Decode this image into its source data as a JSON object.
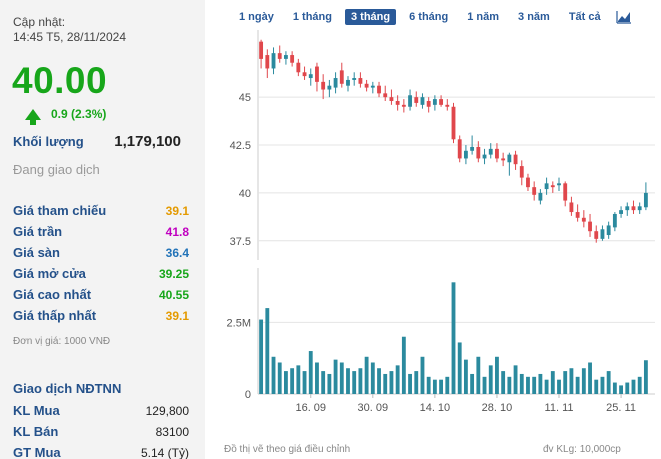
{
  "quote": {
    "updated_label": "Cập nhật:",
    "updated_time": "14:45 T5, 28/11/2024",
    "price": "40.00",
    "change": "0.9 (2.3%)",
    "volume_label": "Khối lượng",
    "volume_value": "1,179,100",
    "status": "Đang giao dịch"
  },
  "stats": [
    {
      "label": "Giá tham chiếu",
      "value": "39.1",
      "color": "#e49a00"
    },
    {
      "label": "Giá trần",
      "value": "41.8",
      "color": "#c000c0"
    },
    {
      "label": "Giá sàn",
      "value": "36.4",
      "color": "#2273b8"
    },
    {
      "label": "Giá mở cửa",
      "value": "39.25",
      "color": "#17a61a"
    },
    {
      "label": "Giá cao nhất",
      "value": "40.55",
      "color": "#17a61a"
    },
    {
      "label": "Giá thấp nhất",
      "value": "39.1",
      "color": "#e49a00"
    }
  ],
  "unit_note": "Đơn vị giá: 1000 VNĐ",
  "foreign": {
    "title": "Giao dịch NĐTNN",
    "rows": [
      {
        "label": "KL Mua",
        "value": "129,800"
      },
      {
        "label": "KL Bán",
        "value": "83100"
      },
      {
        "label": "GT Mua",
        "value": "5.14 (Tỷ)"
      }
    ]
  },
  "tabs": [
    {
      "label": "1 ngày",
      "active": false
    },
    {
      "label": "1 tháng",
      "active": false
    },
    {
      "label": "3 tháng",
      "active": true
    },
    {
      "label": "6 tháng",
      "active": false
    },
    {
      "label": "1 năm",
      "active": false
    },
    {
      "label": "3 năm",
      "active": false
    },
    {
      "label": "Tất cả",
      "active": false
    }
  ],
  "chart_icon": "line-chart-icon",
  "footer": {
    "left": "Đồ thị vẽ theo giá điều chỉnh",
    "right": "đv KLg: 10,000cp"
  },
  "colors": {
    "up": "#2b8a9e",
    "down": "#e0474c",
    "vol": "#2b8a9e",
    "grid": "#e4e4e4"
  },
  "chart_data": {
    "type": "candlestick",
    "price_ticks": [
      "45",
      "42.5",
      "40",
      "37.5"
    ],
    "price_tick_values": [
      45,
      42.5,
      40,
      37.5
    ],
    "price_range": [
      36.6,
      48.3
    ],
    "volume_ticks": [
      "2.5M",
      "0"
    ],
    "volume_tick_values": [
      2500000,
      0
    ],
    "volume_range": [
      0,
      4400000
    ],
    "date_labels": [
      {
        "label": "16. 09",
        "index": 8
      },
      {
        "label": "30. 09",
        "index": 18
      },
      {
        "label": "14. 10",
        "index": 28
      },
      {
        "label": "28. 10",
        "index": 38
      },
      {
        "label": "11. 11",
        "index": 48
      },
      {
        "label": "25. 11",
        "index": 58
      }
    ],
    "candles": [
      {
        "o": 47.9,
        "h": 48.0,
        "l": 46.5,
        "c": 47.0,
        "v": 2600000
      },
      {
        "o": 47.2,
        "h": 47.5,
        "l": 46.0,
        "c": 46.5,
        "v": 3000000
      },
      {
        "o": 46.5,
        "h": 47.6,
        "l": 46.2,
        "c": 47.3,
        "v": 1300000
      },
      {
        "o": 47.3,
        "h": 47.7,
        "l": 46.8,
        "c": 47.0,
        "v": 1100000
      },
      {
        "o": 47.0,
        "h": 47.4,
        "l": 46.7,
        "c": 47.2,
        "v": 800000
      },
      {
        "o": 47.2,
        "h": 47.4,
        "l": 46.6,
        "c": 46.8,
        "v": 900000
      },
      {
        "o": 46.8,
        "h": 47.0,
        "l": 46.1,
        "c": 46.3,
        "v": 1000000
      },
      {
        "o": 46.3,
        "h": 46.6,
        "l": 45.9,
        "c": 46.1,
        "v": 800000
      },
      {
        "o": 46.0,
        "h": 46.5,
        "l": 45.6,
        "c": 46.2,
        "v": 1500000
      },
      {
        "o": 46.6,
        "h": 46.8,
        "l": 45.3,
        "c": 45.8,
        "v": 1100000
      },
      {
        "o": 45.8,
        "h": 46.2,
        "l": 44.9,
        "c": 45.4,
        "v": 800000
      },
      {
        "o": 45.4,
        "h": 45.9,
        "l": 45.0,
        "c": 45.6,
        "v": 700000
      },
      {
        "o": 45.5,
        "h": 46.3,
        "l": 45.2,
        "c": 46.0,
        "v": 1200000
      },
      {
        "o": 46.4,
        "h": 46.8,
        "l": 45.5,
        "c": 45.7,
        "v": 1100000
      },
      {
        "o": 45.6,
        "h": 46.1,
        "l": 45.3,
        "c": 45.9,
        "v": 900000
      },
      {
        "o": 45.9,
        "h": 46.3,
        "l": 45.6,
        "c": 46.0,
        "v": 800000
      },
      {
        "o": 46.0,
        "h": 46.3,
        "l": 45.5,
        "c": 45.7,
        "v": 900000
      },
      {
        "o": 45.7,
        "h": 45.9,
        "l": 45.3,
        "c": 45.5,
        "v": 1300000
      },
      {
        "o": 45.5,
        "h": 45.8,
        "l": 45.2,
        "c": 45.6,
        "v": 1100000
      },
      {
        "o": 45.6,
        "h": 45.8,
        "l": 45.0,
        "c": 45.2,
        "v": 900000
      },
      {
        "o": 45.2,
        "h": 45.6,
        "l": 44.8,
        "c": 45.0,
        "v": 700000
      },
      {
        "o": 45.0,
        "h": 45.4,
        "l": 44.6,
        "c": 44.8,
        "v": 800000
      },
      {
        "o": 44.8,
        "h": 45.1,
        "l": 44.3,
        "c": 44.6,
        "v": 1000000
      },
      {
        "o": 44.6,
        "h": 44.9,
        "l": 44.2,
        "c": 44.5,
        "v": 2000000
      },
      {
        "o": 44.5,
        "h": 45.4,
        "l": 44.3,
        "c": 45.1,
        "v": 700000
      },
      {
        "o": 45.0,
        "h": 45.3,
        "l": 44.5,
        "c": 44.7,
        "v": 800000
      },
      {
        "o": 44.6,
        "h": 45.2,
        "l": 44.4,
        "c": 45.0,
        "v": 1300000
      },
      {
        "o": 44.8,
        "h": 45.0,
        "l": 44.2,
        "c": 44.5,
        "v": 600000
      },
      {
        "o": 44.6,
        "h": 45.1,
        "l": 44.3,
        "c": 44.9,
        "v": 500000
      },
      {
        "o": 44.9,
        "h": 45.1,
        "l": 44.5,
        "c": 44.6,
        "v": 500000
      },
      {
        "o": 44.6,
        "h": 44.9,
        "l": 44.3,
        "c": 44.5,
        "v": 600000
      },
      {
        "o": 44.5,
        "h": 44.7,
        "l": 42.6,
        "c": 42.8,
        "v": 3900000
      },
      {
        "o": 42.8,
        "h": 43.0,
        "l": 41.6,
        "c": 41.8,
        "v": 1800000
      },
      {
        "o": 41.8,
        "h": 42.5,
        "l": 41.5,
        "c": 42.2,
        "v": 1200000
      },
      {
        "o": 42.2,
        "h": 43.0,
        "l": 42.0,
        "c": 42.4,
        "v": 700000
      },
      {
        "o": 42.4,
        "h": 42.7,
        "l": 41.6,
        "c": 41.8,
        "v": 1300000
      },
      {
        "o": 41.8,
        "h": 42.3,
        "l": 41.5,
        "c": 42.0,
        "v": 600000
      },
      {
        "o": 42.0,
        "h": 42.6,
        "l": 41.8,
        "c": 42.3,
        "v": 1000000
      },
      {
        "o": 42.3,
        "h": 42.6,
        "l": 41.6,
        "c": 41.8,
        "v": 1300000
      },
      {
        "o": 41.8,
        "h": 42.1,
        "l": 41.4,
        "c": 41.7,
        "v": 800000
      },
      {
        "o": 41.6,
        "h": 42.1,
        "l": 40.9,
        "c": 42.0,
        "v": 600000
      },
      {
        "o": 42.0,
        "h": 42.2,
        "l": 41.2,
        "c": 41.5,
        "v": 1000000
      },
      {
        "o": 41.4,
        "h": 41.7,
        "l": 40.4,
        "c": 40.8,
        "v": 700000
      },
      {
        "o": 40.8,
        "h": 41.0,
        "l": 40.1,
        "c": 40.3,
        "v": 600000
      },
      {
        "o": 40.3,
        "h": 40.6,
        "l": 39.6,
        "c": 39.9,
        "v": 600000
      },
      {
        "o": 39.6,
        "h": 40.2,
        "l": 39.4,
        "c": 40.0,
        "v": 700000
      },
      {
        "o": 40.2,
        "h": 40.8,
        "l": 39.9,
        "c": 40.5,
        "v": 500000
      },
      {
        "o": 40.4,
        "h": 40.6,
        "l": 40.0,
        "c": 40.3,
        "v": 800000
      },
      {
        "o": 40.4,
        "h": 40.8,
        "l": 40.1,
        "c": 40.5,
        "v": 500000
      },
      {
        "o": 40.5,
        "h": 40.6,
        "l": 39.3,
        "c": 39.6,
        "v": 800000
      },
      {
        "o": 39.5,
        "h": 39.8,
        "l": 38.8,
        "c": 39.0,
        "v": 900000
      },
      {
        "o": 39.0,
        "h": 39.4,
        "l": 38.5,
        "c": 38.7,
        "v": 600000
      },
      {
        "o": 38.7,
        "h": 39.1,
        "l": 38.2,
        "c": 38.5,
        "v": 900000
      },
      {
        "o": 38.5,
        "h": 38.9,
        "l": 37.7,
        "c": 38.0,
        "v": 1100000
      },
      {
        "o": 38.0,
        "h": 38.3,
        "l": 37.4,
        "c": 37.6,
        "v": 500000
      },
      {
        "o": 37.6,
        "h": 38.3,
        "l": 37.5,
        "c": 38.1,
        "v": 600000
      },
      {
        "o": 37.8,
        "h": 38.5,
        "l": 37.6,
        "c": 38.3,
        "v": 800000
      },
      {
        "o": 38.2,
        "h": 39.0,
        "l": 38.0,
        "c": 38.9,
        "v": 400000
      },
      {
        "o": 38.9,
        "h": 39.3,
        "l": 38.7,
        "c": 39.1,
        "v": 300000
      },
      {
        "o": 39.1,
        "h": 39.5,
        "l": 38.8,
        "c": 39.3,
        "v": 400000
      },
      {
        "o": 39.3,
        "h": 39.6,
        "l": 38.9,
        "c": 39.1,
        "v": 500000
      },
      {
        "o": 39.1,
        "h": 39.5,
        "l": 38.9,
        "c": 39.3,
        "v": 600000
      },
      {
        "o": 39.25,
        "h": 40.55,
        "l": 39.1,
        "c": 40.0,
        "v": 1179100
      }
    ]
  }
}
